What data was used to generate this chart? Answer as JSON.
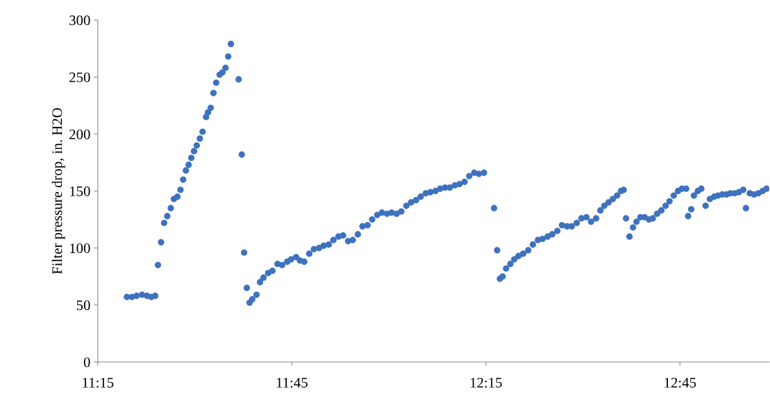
{
  "chart_data": {
    "type": "scatter",
    "ylabel": "Filter pressure drop, in. H2O",
    "marker": "circle",
    "grid": false,
    "x": [
      11.325,
      11.338,
      11.35,
      11.364,
      11.377,
      11.388,
      11.398,
      11.405,
      11.413,
      11.421,
      11.429,
      11.438,
      11.446,
      11.455,
      11.463,
      11.47,
      11.477,
      11.484,
      11.491,
      11.498,
      11.505,
      11.513,
      11.52,
      11.529,
      11.534,
      11.541,
      11.548,
      11.555,
      11.564,
      11.571,
      11.579,
      11.586,
      11.593,
      11.613,
      11.621,
      11.627,
      11.634,
      11.641,
      11.648,
      11.659,
      11.668,
      11.677,
      11.689,
      11.7,
      11.713,
      11.725,
      11.738,
      11.748,
      11.761,
      11.771,
      11.782,
      11.795,
      11.807,
      11.82,
      11.832,
      11.845,
      11.857,
      11.87,
      11.882,
      11.895,
      11.907,
      11.92,
      11.932,
      11.945,
      11.957,
      11.97,
      11.982,
      11.995,
      12.007,
      12.02,
      12.032,
      12.045,
      12.057,
      12.07,
      12.082,
      12.095,
      12.107,
      12.12,
      12.132,
      12.145,
      12.157,
      12.17,
      12.182,
      12.195,
      12.207,
      12.22,
      12.232,
      12.245,
      12.271,
      12.279,
      12.286,
      12.293,
      12.302,
      12.313,
      12.323,
      12.334,
      12.346,
      12.359,
      12.371,
      12.384,
      12.396,
      12.409,
      12.421,
      12.434,
      12.446,
      12.459,
      12.471,
      12.484,
      12.496,
      12.509,
      12.521,
      12.534,
      12.545,
      12.555,
      12.566,
      12.577,
      12.588,
      12.598,
      12.605,
      12.611,
      12.62,
      12.629,
      12.638,
      12.648,
      12.659,
      12.67,
      12.68,
      12.691,
      12.702,
      12.713,
      12.723,
      12.734,
      12.745,
      12.755,
      12.766,
      12.771,
      12.779,
      12.786,
      12.796,
      12.805,
      12.816,
      12.827,
      12.838,
      12.848,
      12.859,
      12.87,
      12.88,
      12.891,
      12.902,
      12.913,
      12.92,
      12.93,
      12.941,
      12.952,
      12.963,
      12.973
    ],
    "series": [
      {
        "color": "#3f72be",
        "values": [
          57,
          57,
          58,
          59,
          58,
          57,
          58,
          85,
          105,
          122,
          128,
          135,
          143,
          145,
          151,
          160,
          168,
          173,
          179,
          185,
          190,
          196,
          202,
          215,
          219,
          223,
          236,
          245,
          252,
          254,
          258,
          268,
          279,
          248,
          182,
          96,
          65,
          52,
          55,
          59,
          70,
          74,
          78,
          80,
          86,
          85,
          88,
          90,
          92,
          89,
          88,
          95,
          99,
          100,
          102,
          103,
          107,
          110,
          111,
          106,
          107,
          112,
          119,
          120,
          125,
          129,
          131,
          130,
          131,
          130,
          132,
          137,
          140,
          142,
          145,
          148,
          149,
          150,
          152,
          153,
          153,
          155,
          156,
          158,
          163,
          166,
          165,
          166,
          135,
          98,
          73,
          75,
          82,
          86,
          90,
          93,
          95,
          98,
          103,
          107,
          108,
          110,
          112,
          115,
          120,
          119,
          119,
          122,
          126,
          127,
          123,
          126,
          133,
          137,
          140,
          143,
          146,
          150,
          151,
          126,
          110,
          118,
          123,
          127,
          127,
          125,
          126,
          130,
          133,
          137,
          141,
          146,
          150,
          152,
          152,
          128,
          134,
          146,
          150,
          152,
          137,
          143,
          145,
          146,
          147,
          147,
          148,
          148,
          149,
          151,
          135,
          148,
          147,
          148,
          150,
          152
        ]
      }
    ],
    "xlim": [
      11.25,
      12.98
    ],
    "xticks": [
      {
        "value": 11.25,
        "label": "11:15"
      },
      {
        "value": 11.75,
        "label": "11:45"
      },
      {
        "value": 12.25,
        "label": "12:15"
      },
      {
        "value": 12.75,
        "label": "12:45"
      }
    ],
    "ylim": [
      0,
      300
    ],
    "yticks": [
      0,
      50,
      100,
      150,
      200,
      250,
      300
    ]
  }
}
